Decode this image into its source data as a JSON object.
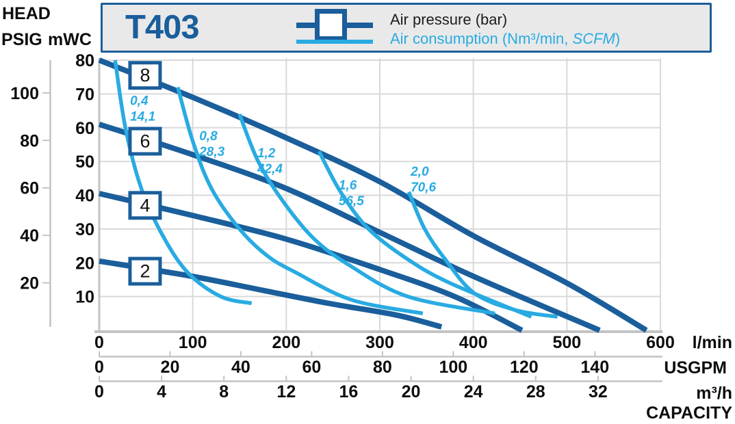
{
  "header": {
    "model": "T403",
    "legend_pressure": {
      "label": "Air pressure (bar)"
    },
    "legend_consumption": {
      "pre": "Air consumption (Nm³/min, ",
      "italic": "SCFM",
      "post": ")"
    }
  },
  "axis_corner": {
    "head": "HEAD",
    "psig": "PSIG",
    "mwc": "mWC"
  },
  "bottom_units": {
    "lmin": "l/min",
    "usgpm": "USGPM",
    "m3h": "m³/h",
    "capacity": "CAPACITY"
  },
  "colors": {
    "pressure_blue": "#1a5e9b",
    "consumption_blue": "#29abe2",
    "header_bg": "#e9e9e9",
    "grid": "#d9d9d9",
    "axis_gray": "#c3c3c3",
    "text": "#0d0d0d"
  },
  "chart_data": {
    "type": "line",
    "title": "T403",
    "xlabel": "CAPACITY",
    "xlim_lmin": [
      0,
      600
    ],
    "ylim_mwc": [
      0,
      80
    ],
    "grid": true,
    "x_gridlines_lmin": [
      100,
      200,
      300,
      400,
      500,
      600
    ],
    "y_gridlines_mwc": [
      10,
      20,
      30,
      40,
      50,
      60,
      70,
      80
    ],
    "bottom_axes": [
      {
        "unit": "l/min",
        "ticks": [
          0,
          100,
          200,
          300,
          400,
          500,
          600
        ],
        "lmin_per_unit": 1
      },
      {
        "unit": "USGPM",
        "ticks": [
          0,
          20,
          40,
          60,
          80,
          100,
          120,
          140
        ],
        "lmin_per_unit": 3.7854
      },
      {
        "unit": "m³/h",
        "ticks": [
          0,
          4,
          8,
          12,
          16,
          20,
          24,
          28,
          32
        ],
        "lmin_per_unit": 16.6667
      }
    ],
    "left_axes": [
      {
        "unit": "mWC",
        "ticks": [
          10,
          20,
          30,
          40,
          50,
          60,
          70,
          80
        ],
        "mwc_per_unit": 1
      },
      {
        "unit": "PSIG",
        "ticks": [
          20,
          40,
          60,
          80,
          100
        ],
        "mwc_per_unit": 0.70307
      }
    ],
    "pressure_series": [
      {
        "bar": 8,
        "box_label": "8",
        "box_at": [
          49,
          75.5
        ],
        "points_lmin_mwc": [
          [
            0,
            80
          ],
          [
            100,
            69
          ],
          [
            200,
            57
          ],
          [
            300,
            44
          ],
          [
            400,
            28
          ],
          [
            500,
            14
          ],
          [
            585,
            0
          ]
        ]
      },
      {
        "bar": 6,
        "box_label": "6",
        "box_at": [
          49,
          56
        ],
        "points_lmin_mwc": [
          [
            0,
            61
          ],
          [
            100,
            52
          ],
          [
            200,
            42
          ],
          [
            300,
            29
          ],
          [
            400,
            16
          ],
          [
            535,
            0
          ]
        ]
      },
      {
        "bar": 4,
        "box_label": "4",
        "box_at": [
          49,
          37
        ],
        "points_lmin_mwc": [
          [
            0,
            40.5
          ],
          [
            100,
            34
          ],
          [
            200,
            27
          ],
          [
            300,
            18
          ],
          [
            380,
            10
          ],
          [
            452,
            0
          ]
        ]
      },
      {
        "bar": 2,
        "box_label": "2",
        "box_at": [
          49,
          17.5
        ],
        "points_lmin_mwc": [
          [
            0,
            20.5
          ],
          [
            99,
            16
          ],
          [
            172,
            12
          ],
          [
            245,
            8
          ],
          [
            318,
            4.5
          ],
          [
            366,
            1
          ]
        ]
      }
    ],
    "consumption_series": [
      {
        "nm3_min": "0,4",
        "scfm": "14,1",
        "label_at": [
          33,
          70
        ],
        "points_lmin_mwc": [
          [
            17,
            80
          ],
          [
            28,
            60
          ],
          [
            45,
            42
          ],
          [
            68,
            28
          ],
          [
            95,
            17
          ],
          [
            130,
            10
          ],
          [
            163,
            8
          ]
        ]
      },
      {
        "nm3_min": "0,8",
        "scfm": "28,3",
        "label_at": [
          107,
          59.5
        ],
        "points_lmin_mwc": [
          [
            84,
            72
          ],
          [
            100,
            56
          ],
          [
            120,
            42
          ],
          [
            150,
            30
          ],
          [
            180,
            22
          ],
          [
            211,
            17
          ],
          [
            270,
            9
          ],
          [
            346,
            5
          ]
        ]
      },
      {
        "nm3_min": "1,2",
        "scfm": "42,4",
        "label_at": [
          169,
          54.5
        ],
        "points_lmin_mwc": [
          [
            150,
            64
          ],
          [
            170,
            50
          ],
          [
            197,
            38
          ],
          [
            230,
            27
          ],
          [
            269,
            19
          ],
          [
            330,
            10
          ],
          [
            423,
            5
          ]
        ]
      },
      {
        "nm3_min": "1,6",
        "scfm": "56,5",
        "label_at": [
          256,
          45
        ],
        "points_lmin_mwc": [
          [
            235,
            53
          ],
          [
            258,
            41
          ],
          [
            288,
            30
          ],
          [
            330,
            21
          ],
          [
            375,
            14
          ],
          [
            462,
            4
          ]
        ]
      },
      {
        "nm3_min": "2,0",
        "scfm": "70,6",
        "label_at": [
          333,
          49
        ],
        "points_lmin_mwc": [
          [
            331,
            41
          ],
          [
            348,
            30
          ],
          [
            370,
            21
          ],
          [
            401,
            11
          ],
          [
            445,
            6
          ],
          [
            490,
            4
          ]
        ]
      }
    ]
  }
}
